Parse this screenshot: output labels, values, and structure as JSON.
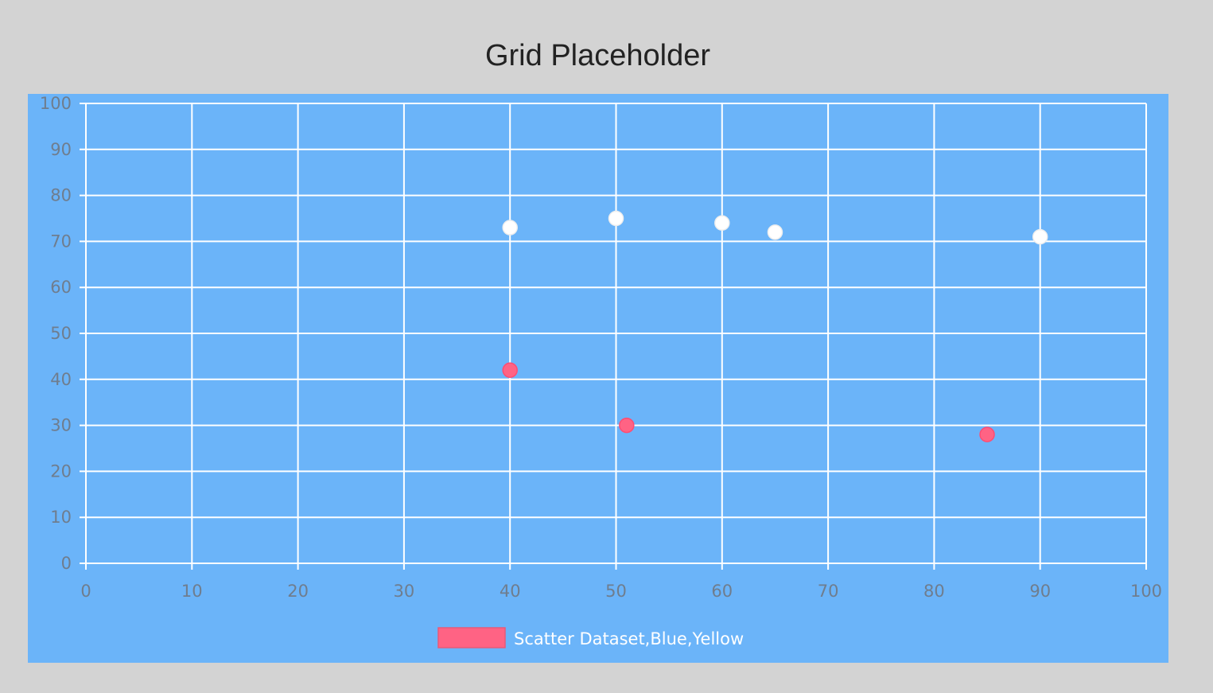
{
  "chart_data": {
    "type": "scatter",
    "title": "Grid Placeholder",
    "xlim": [
      0,
      100
    ],
    "ylim": [
      0,
      100
    ],
    "x_ticks": [
      "0",
      "10",
      "20",
      "30",
      "40",
      "50",
      "60",
      "70",
      "80",
      "90",
      "100"
    ],
    "y_ticks": [
      "0",
      "10",
      "20",
      "30",
      "40",
      "50",
      "60",
      "70",
      "80",
      "90",
      "100"
    ],
    "grid": true,
    "legend_position": "bottom-center",
    "series": [
      {
        "color": "#ff6384",
        "points": [
          {
            "x": 40,
            "y": 42
          },
          {
            "x": 51,
            "y": 30
          },
          {
            "x": 85,
            "y": 28
          }
        ]
      },
      {
        "color": "#ffffff",
        "points": [
          {
            "x": 40,
            "y": 73
          },
          {
            "x": 50,
            "y": 75
          },
          {
            "x": 60,
            "y": 74
          },
          {
            "x": 65,
            "y": 72
          },
          {
            "x": 90,
            "y": 71
          }
        ]
      }
    ],
    "legend": [
      {
        "label": "Scatter Dataset,Blue,Yellow",
        "color": "#ff6384"
      }
    ],
    "background_color": "#6bb4f9",
    "grid_color": "#ffffff"
  }
}
